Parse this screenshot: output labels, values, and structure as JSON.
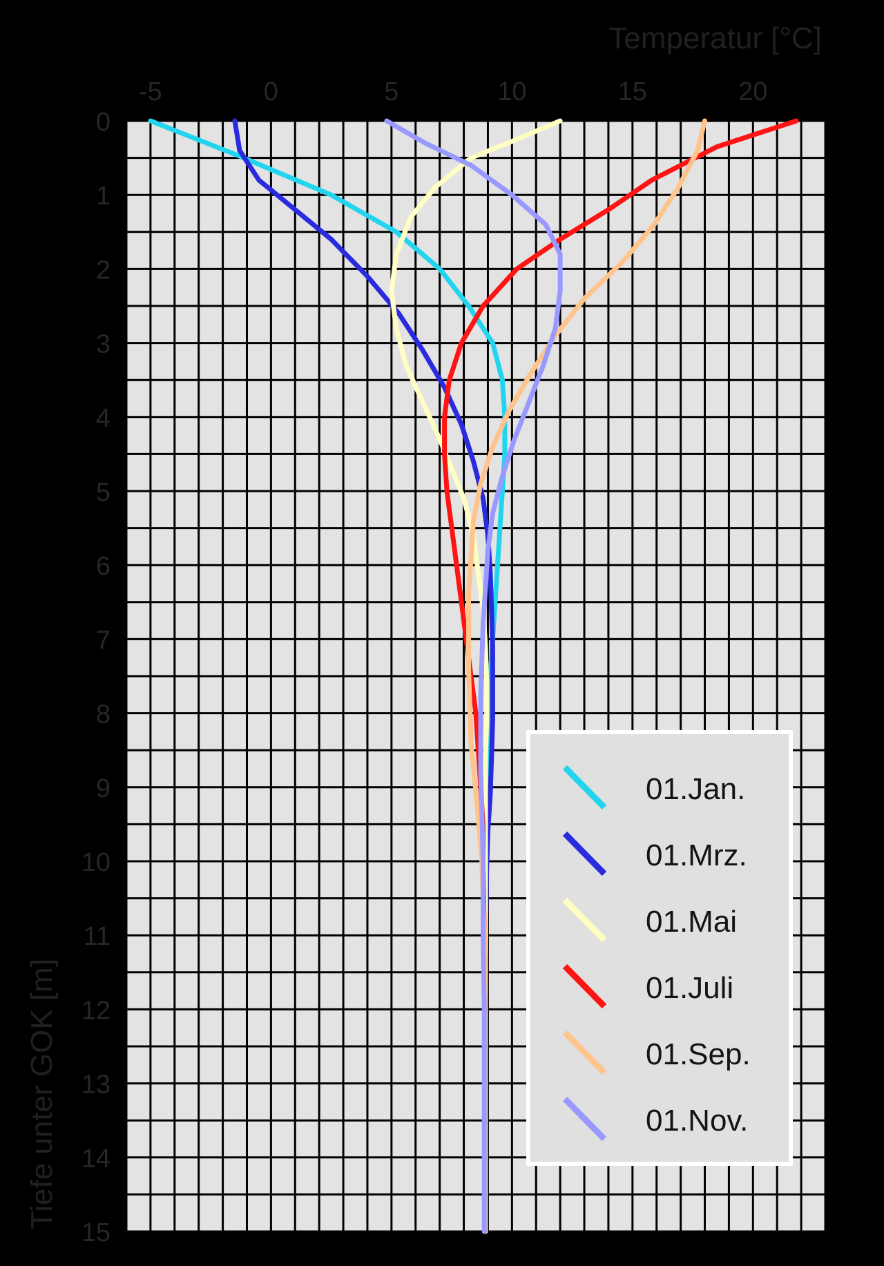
{
  "chart_data": {
    "type": "line",
    "xlabel": "Temperatur [°C]",
    "ylabel": "Tiefe unter GOK [m]",
    "xlim": [
      -6,
      23
    ],
    "ylim": [
      0,
      15
    ],
    "x_ticks": [
      -5,
      0,
      5,
      10,
      15,
      20
    ],
    "y_ticks": [
      0,
      1,
      2,
      3,
      4,
      5,
      6,
      7,
      8,
      9,
      10,
      11,
      12,
      13,
      14,
      15
    ],
    "grid": true,
    "legend_position": "bottom-right",
    "series": [
      {
        "name": "01.Jan.",
        "color": "#22d4ee",
        "points": [
          [
            -5.0,
            0
          ],
          [
            -1.5,
            0.45
          ],
          [
            2.5,
            1.0
          ],
          [
            5.2,
            1.5
          ],
          [
            7.0,
            2.0
          ],
          [
            8.2,
            2.5
          ],
          [
            9.2,
            3.0
          ],
          [
            9.6,
            3.5
          ],
          [
            9.7,
            4.0
          ],
          [
            9.7,
            4.5
          ],
          [
            9.6,
            5.0
          ],
          [
            9.5,
            5.5
          ],
          [
            9.4,
            6.0
          ],
          [
            9.3,
            6.5
          ],
          [
            9.2,
            7.0
          ],
          [
            9.1,
            7.5
          ],
          [
            9.05,
            8.0
          ],
          [
            9.0,
            8.5
          ],
          [
            8.95,
            9.0
          ],
          [
            8.9,
            9.5
          ],
          [
            8.9,
            10.0
          ],
          [
            8.9,
            11.0
          ],
          [
            8.9,
            12.0
          ],
          [
            8.9,
            13.0
          ],
          [
            8.9,
            14.0
          ],
          [
            8.9,
            15.0
          ]
        ]
      },
      {
        "name": "01.Mrz.",
        "color": "#2a2adf",
        "points": [
          [
            -1.5,
            0
          ],
          [
            -1.3,
            0.4
          ],
          [
            -0.5,
            0.8
          ],
          [
            1.0,
            1.2
          ],
          [
            2.5,
            1.6
          ],
          [
            4.0,
            2.1
          ],
          [
            5.3,
            2.6
          ],
          [
            6.3,
            3.1
          ],
          [
            7.2,
            3.6
          ],
          [
            7.9,
            4.1
          ],
          [
            8.4,
            4.6
          ],
          [
            8.8,
            5.1
          ],
          [
            9.0,
            5.6
          ],
          [
            9.1,
            6.1
          ],
          [
            9.15,
            6.6
          ],
          [
            9.2,
            7.1
          ],
          [
            9.2,
            7.6
          ],
          [
            9.2,
            8.1
          ],
          [
            9.15,
            8.6
          ],
          [
            9.1,
            9.1
          ],
          [
            9.0,
            9.6
          ],
          [
            8.95,
            10.1
          ],
          [
            8.9,
            11.0
          ],
          [
            8.9,
            12.0
          ],
          [
            8.9,
            13.0
          ],
          [
            8.9,
            14.0
          ],
          [
            8.9,
            15.0
          ]
        ]
      },
      {
        "name": "01.Mai",
        "color": "#ffffc4",
        "points": [
          [
            12.0,
            0
          ],
          [
            10.2,
            0.25
          ],
          [
            8.3,
            0.5
          ],
          [
            6.8,
            0.9
          ],
          [
            5.8,
            1.3
          ],
          [
            5.2,
            1.8
          ],
          [
            5.0,
            2.3
          ],
          [
            5.2,
            2.8
          ],
          [
            5.6,
            3.3
          ],
          [
            6.3,
            3.8
          ],
          [
            7.0,
            4.3
          ],
          [
            7.5,
            4.7
          ],
          [
            8.0,
            5.1
          ],
          [
            8.4,
            5.6
          ],
          [
            8.6,
            6.1
          ],
          [
            8.8,
            6.6
          ],
          [
            8.9,
            7.1
          ],
          [
            8.95,
            7.6
          ],
          [
            8.95,
            8.1
          ],
          [
            8.9,
            8.6
          ],
          [
            8.9,
            9.1
          ],
          [
            8.9,
            10.0
          ],
          [
            8.9,
            11.0
          ],
          [
            8.9,
            12.0
          ],
          [
            8.9,
            13.0
          ],
          [
            8.9,
            14.0
          ],
          [
            8.9,
            15.0
          ]
        ]
      },
      {
        "name": "01.Juli",
        "color": "#ff1414",
        "points": [
          [
            21.8,
            0
          ],
          [
            18.5,
            0.35
          ],
          [
            15.8,
            0.8
          ],
          [
            14.0,
            1.2
          ],
          [
            12.0,
            1.6
          ],
          [
            10.2,
            2.0
          ],
          [
            8.8,
            2.5
          ],
          [
            7.9,
            3.0
          ],
          [
            7.4,
            3.5
          ],
          [
            7.2,
            4.0
          ],
          [
            7.2,
            4.5
          ],
          [
            7.3,
            5.0
          ],
          [
            7.5,
            5.5
          ],
          [
            7.7,
            6.0
          ],
          [
            7.9,
            6.5
          ],
          [
            8.1,
            7.0
          ],
          [
            8.3,
            7.5
          ],
          [
            8.5,
            8.0
          ],
          [
            8.6,
            8.5
          ],
          [
            8.7,
            9.0
          ],
          [
            8.8,
            9.5
          ],
          [
            8.8,
            10.0
          ],
          [
            8.85,
            11.0
          ],
          [
            8.9,
            12.0
          ],
          [
            8.9,
            13.0
          ],
          [
            8.9,
            14.0
          ],
          [
            8.9,
            15.0
          ]
        ]
      },
      {
        "name": "01.Sep.",
        "color": "#ffc38c",
        "points": [
          [
            18.0,
            0
          ],
          [
            17.7,
            0.4
          ],
          [
            16.9,
            0.9
          ],
          [
            15.9,
            1.4
          ],
          [
            14.6,
            1.9
          ],
          [
            13.0,
            2.4
          ],
          [
            11.8,
            2.9
          ],
          [
            10.8,
            3.4
          ],
          [
            9.9,
            3.9
          ],
          [
            9.2,
            4.4
          ],
          [
            8.7,
            4.9
          ],
          [
            8.4,
            5.4
          ],
          [
            8.3,
            5.9
          ],
          [
            8.2,
            6.4
          ],
          [
            8.2,
            6.9
          ],
          [
            8.2,
            7.4
          ],
          [
            8.25,
            7.9
          ],
          [
            8.3,
            8.4
          ],
          [
            8.45,
            8.9
          ],
          [
            8.6,
            9.4
          ],
          [
            8.75,
            10.0
          ],
          [
            8.85,
            11.0
          ],
          [
            8.9,
            12.0
          ],
          [
            8.9,
            13.0
          ],
          [
            8.9,
            14.0
          ],
          [
            8.9,
            15.0
          ]
        ]
      },
      {
        "name": "01.Nov.",
        "color": "#9999ff",
        "points": [
          [
            4.8,
            0
          ],
          [
            6.4,
            0.3
          ],
          [
            8.3,
            0.6
          ],
          [
            10.0,
            1.0
          ],
          [
            11.4,
            1.4
          ],
          [
            12.0,
            1.8
          ],
          [
            12.0,
            2.3
          ],
          [
            11.8,
            2.8
          ],
          [
            11.3,
            3.3
          ],
          [
            10.7,
            3.8
          ],
          [
            10.1,
            4.3
          ],
          [
            9.6,
            4.8
          ],
          [
            9.2,
            5.3
          ],
          [
            9.0,
            5.8
          ],
          [
            8.9,
            6.3
          ],
          [
            8.8,
            6.8
          ],
          [
            8.75,
            7.3
          ],
          [
            8.7,
            7.8
          ],
          [
            8.7,
            8.3
          ],
          [
            8.7,
            8.8
          ],
          [
            8.75,
            9.3
          ],
          [
            8.8,
            10.0
          ],
          [
            8.8,
            11.0
          ],
          [
            8.85,
            12.0
          ],
          [
            8.85,
            13.0
          ],
          [
            8.85,
            14.0
          ],
          [
            8.85,
            15.0
          ]
        ]
      }
    ]
  }
}
